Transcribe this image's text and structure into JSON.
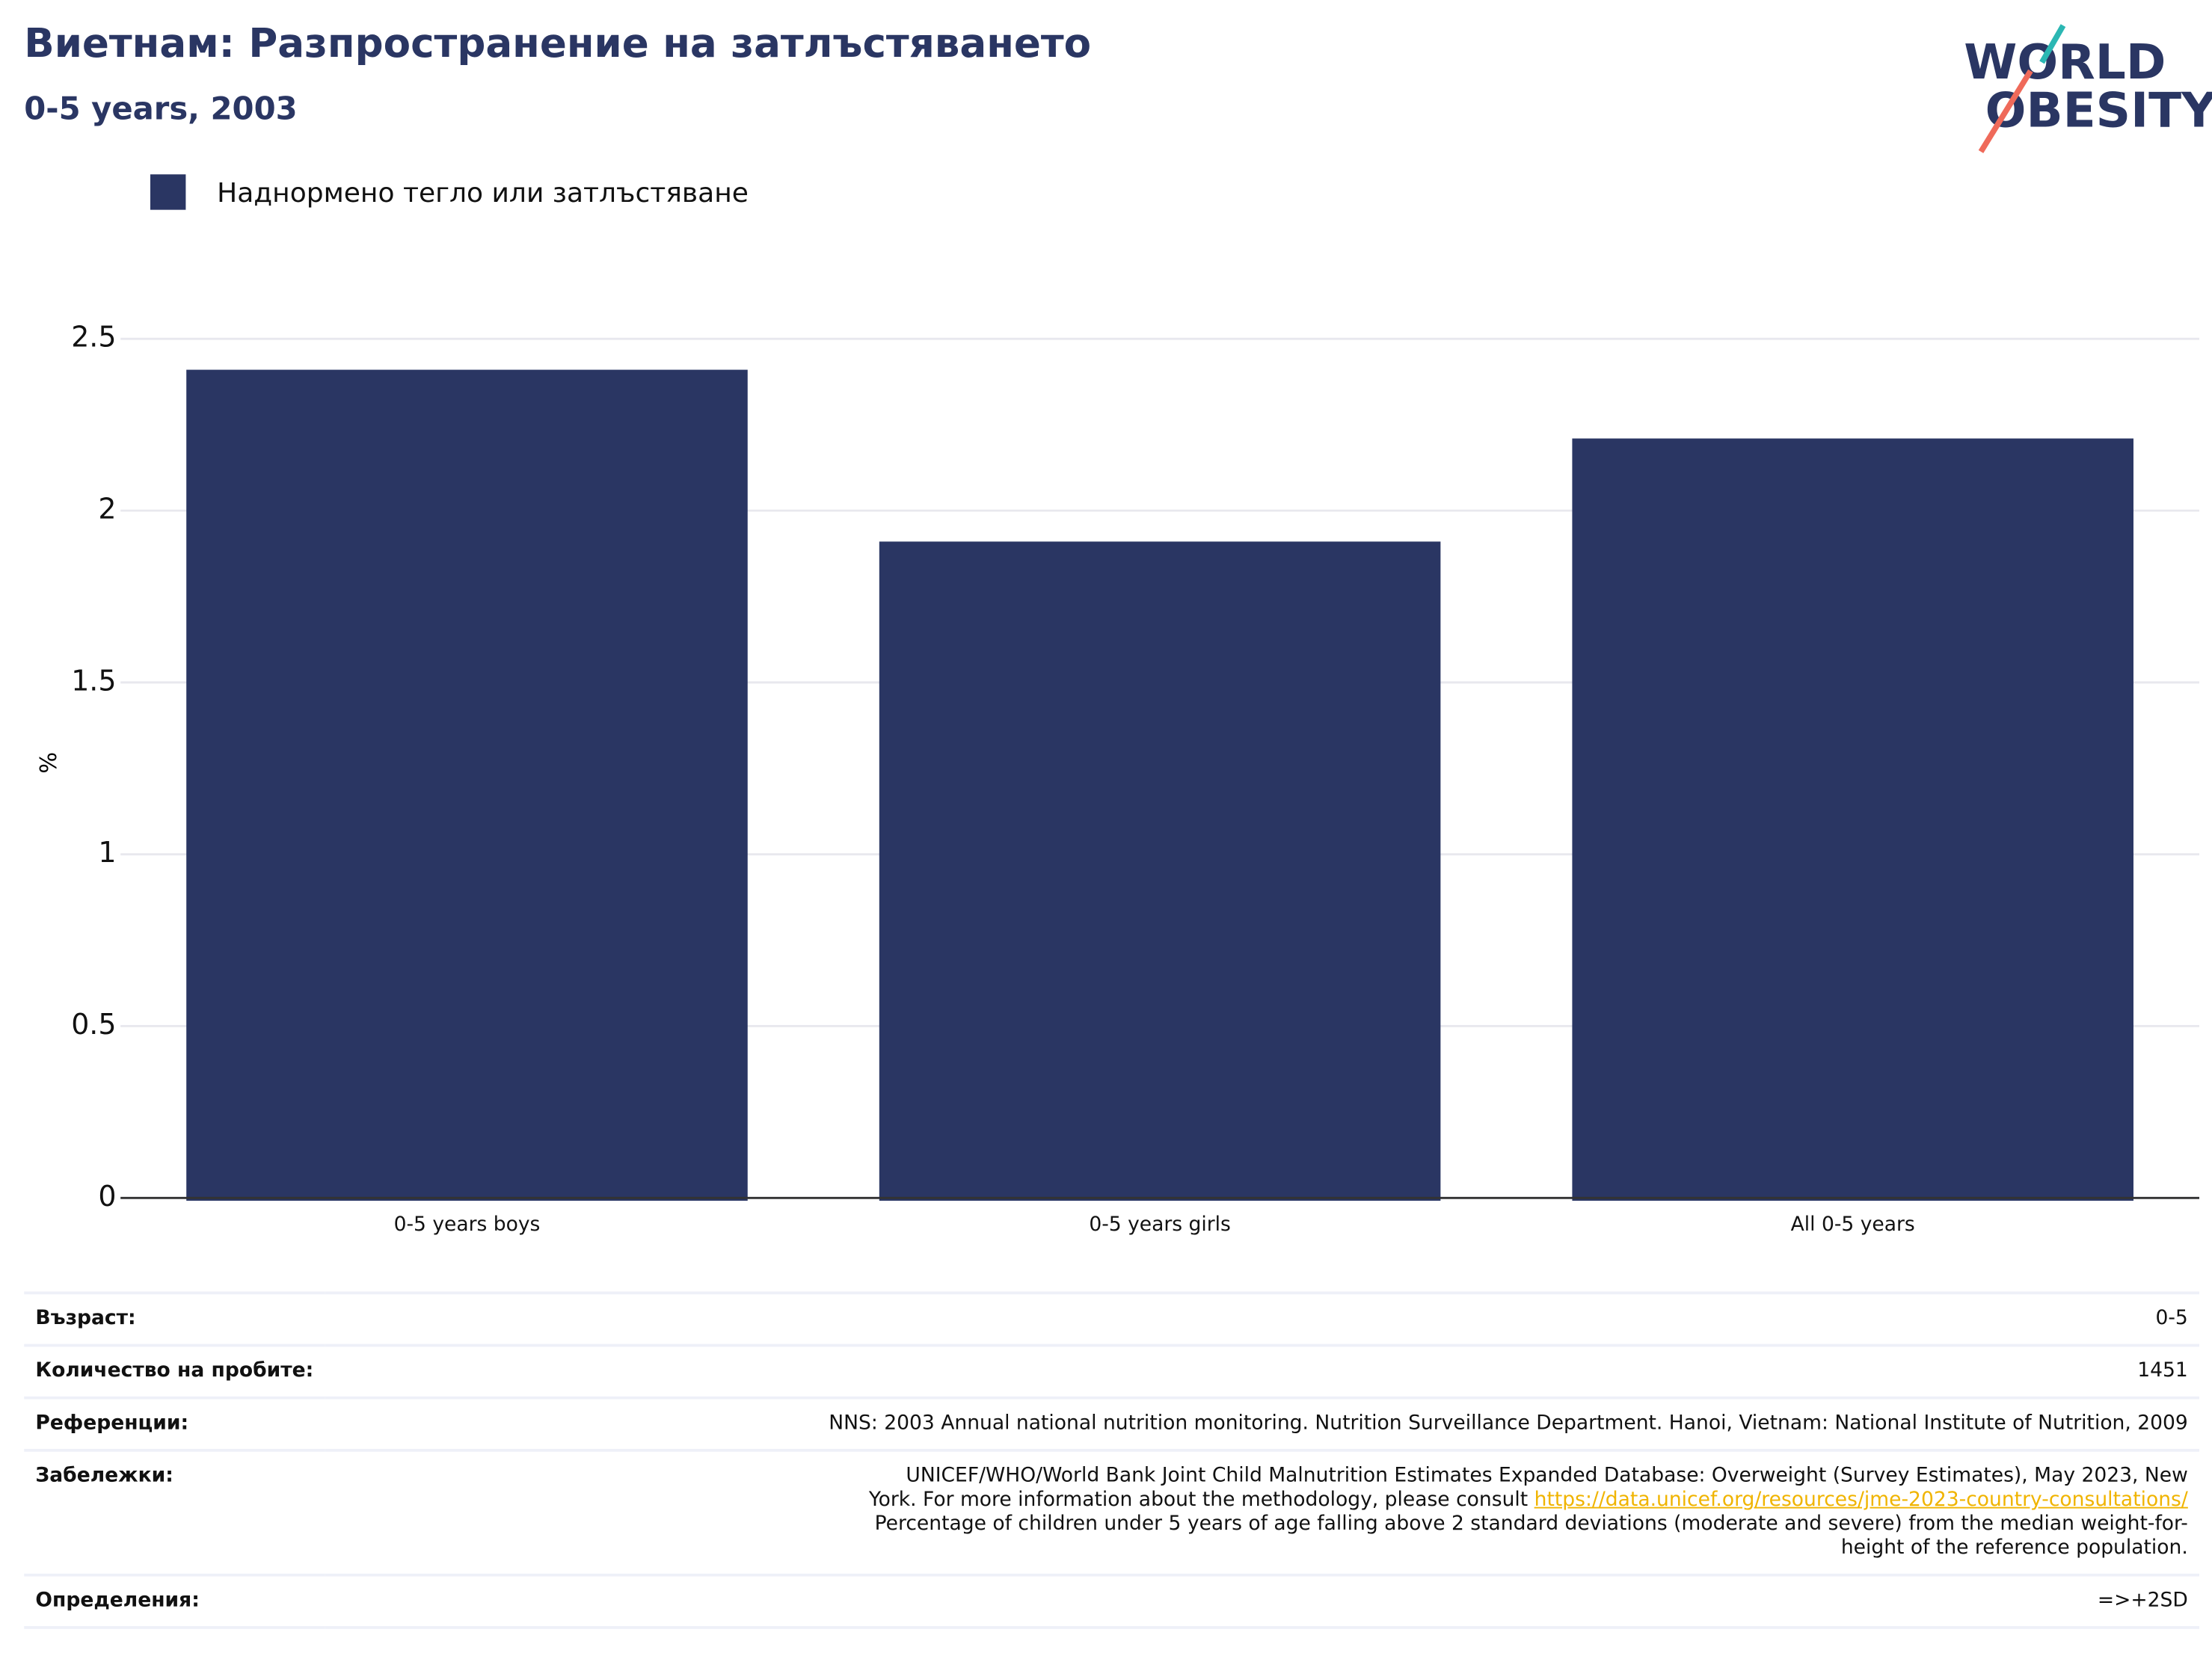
{
  "chart_data": {
    "type": "bar",
    "title": "Виетнам: Разпространение на затлъстяването",
    "subtitle": "0-5 years, 2003",
    "y_label": "%",
    "categories": [
      "0-5 years boys",
      "0-5 years girls",
      "All 0-5 years"
    ],
    "series": [
      {
        "name": "Наднормено тегло или затлъстяване",
        "color": "#2a3663",
        "values": [
          2.41,
          1.91,
          2.21
        ]
      }
    ],
    "ylim": [
      0,
      2.5
    ],
    "yticks": [
      0,
      0.5,
      1,
      1.5,
      2,
      2.5
    ],
    "grid": true,
    "legend": "top-left"
  },
  "logo": [
    "WORLD",
    "OBESITY"
  ],
  "table": {
    "rows": [
      [
        "Възраст:",
        "0-5"
      ],
      [
        "Количество на пробите:",
        "1451"
      ],
      [
        "Референции:",
        "NNS: 2003 Annual national nutrition monitoring. Nutrition Surveillance Department. Hanoi, Vietnam: National Institute of Nutrition, 2009"
      ],
      [
        "Забележки:",
        [
          "UNICEF/WHO/World Bank Joint Child Malnutrition Estimates Expanded Database: Overweight (Survey Estimates), May 2023, New York. For more information about the methodology, please consult",
          "https://data.unicef.org/resources/jme-2023-country-consultations/",
          "Percentage of children under 5 years of age falling above 2 standard deviations (moderate and severe) from the median weight-for-height of the reference population."
        ]
      ],
      [
        "Определения:",
        "=>+2SD"
      ]
    ]
  }
}
